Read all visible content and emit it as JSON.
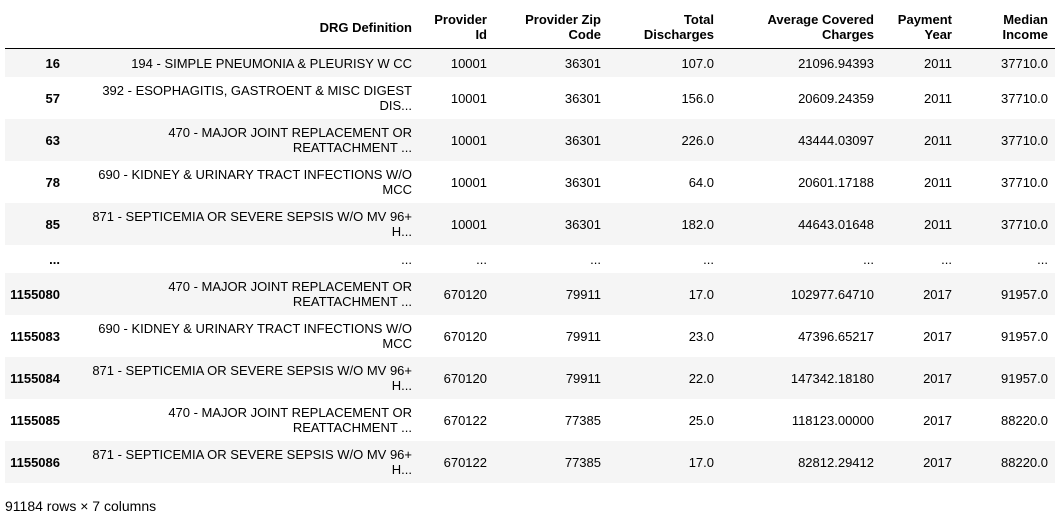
{
  "table": {
    "columns": [
      {
        "key": "index",
        "label": ""
      },
      {
        "key": "drg",
        "label": "DRG Definition"
      },
      {
        "key": "provider_id",
        "label": "Provider Id",
        "label_lines": [
          "Provider",
          "Id"
        ]
      },
      {
        "key": "zip",
        "label": "Provider Zip Code",
        "label_lines": [
          "Provider Zip",
          "Code"
        ]
      },
      {
        "key": "discharges",
        "label": "Total Discharges",
        "label_lines": [
          "Total",
          "Discharges"
        ]
      },
      {
        "key": "charges",
        "label": "Average Covered Charges",
        "label_lines": [
          "Average Covered",
          "Charges"
        ]
      },
      {
        "key": "year",
        "label": "Payment Year",
        "label_lines": [
          "Payment",
          "Year"
        ]
      },
      {
        "key": "income",
        "label": "Median Income",
        "label_lines": [
          "Median",
          "Income"
        ]
      }
    ],
    "rows": [
      {
        "index": "16",
        "drg": [
          "194 - SIMPLE PNEUMONIA & PLEURISY W CC"
        ],
        "provider_id": "10001",
        "zip": "36301",
        "discharges": "107.0",
        "charges": "21096.94393",
        "year": "2011",
        "income": "37710.0"
      },
      {
        "index": "57",
        "drg": [
          "392 - ESOPHAGITIS, GASTROENT & MISC DIGEST",
          "DIS..."
        ],
        "provider_id": "10001",
        "zip": "36301",
        "discharges": "156.0",
        "charges": "20609.24359",
        "year": "2011",
        "income": "37710.0"
      },
      {
        "index": "63",
        "drg": [
          "470 - MAJOR JOINT REPLACEMENT OR",
          "REATTACHMENT ..."
        ],
        "provider_id": "10001",
        "zip": "36301",
        "discharges": "226.0",
        "charges": "43444.03097",
        "year": "2011",
        "income": "37710.0"
      },
      {
        "index": "78",
        "drg": [
          "690 - KIDNEY & URINARY TRACT INFECTIONS W/O",
          "MCC"
        ],
        "provider_id": "10001",
        "zip": "36301",
        "discharges": "64.0",
        "charges": "20601.17188",
        "year": "2011",
        "income": "37710.0"
      },
      {
        "index": "85",
        "drg": [
          "871 - SEPTICEMIA OR SEVERE SEPSIS W/O MV 96+",
          "H..."
        ],
        "provider_id": "10001",
        "zip": "36301",
        "discharges": "182.0",
        "charges": "44643.01648",
        "year": "2011",
        "income": "37710.0"
      },
      {
        "index": "...",
        "drg": [
          "..."
        ],
        "provider_id": "...",
        "zip": "...",
        "discharges": "...",
        "charges": "...",
        "year": "...",
        "income": "...",
        "ellipsis": true
      },
      {
        "index": "1155080",
        "drg": [
          "470 - MAJOR JOINT REPLACEMENT OR",
          "REATTACHMENT ..."
        ],
        "provider_id": "670120",
        "zip": "79911",
        "discharges": "17.0",
        "charges": "102977.64710",
        "year": "2017",
        "income": "91957.0"
      },
      {
        "index": "1155083",
        "drg": [
          "690 - KIDNEY & URINARY TRACT INFECTIONS W/O",
          "MCC"
        ],
        "provider_id": "670120",
        "zip": "79911",
        "discharges": "23.0",
        "charges": "47396.65217",
        "year": "2017",
        "income": "91957.0"
      },
      {
        "index": "1155084",
        "drg": [
          "871 - SEPTICEMIA OR SEVERE SEPSIS W/O MV 96+",
          "H..."
        ],
        "provider_id": "670120",
        "zip": "79911",
        "discharges": "22.0",
        "charges": "147342.18180",
        "year": "2017",
        "income": "91957.0"
      },
      {
        "index": "1155085",
        "drg": [
          "470 - MAJOR JOINT REPLACEMENT OR",
          "REATTACHMENT ..."
        ],
        "provider_id": "670122",
        "zip": "77385",
        "discharges": "25.0",
        "charges": "118123.00000",
        "year": "2017",
        "income": "88220.0"
      },
      {
        "index": "1155086",
        "drg": [
          "871 - SEPTICEMIA OR SEVERE SEPSIS W/O MV 96+",
          "H..."
        ],
        "provider_id": "670122",
        "zip": "77385",
        "discharges": "17.0",
        "charges": "82812.29412",
        "year": "2017",
        "income": "88220.0"
      }
    ]
  },
  "footer": {
    "shape_text": "91184 rows × 7 columns"
  }
}
